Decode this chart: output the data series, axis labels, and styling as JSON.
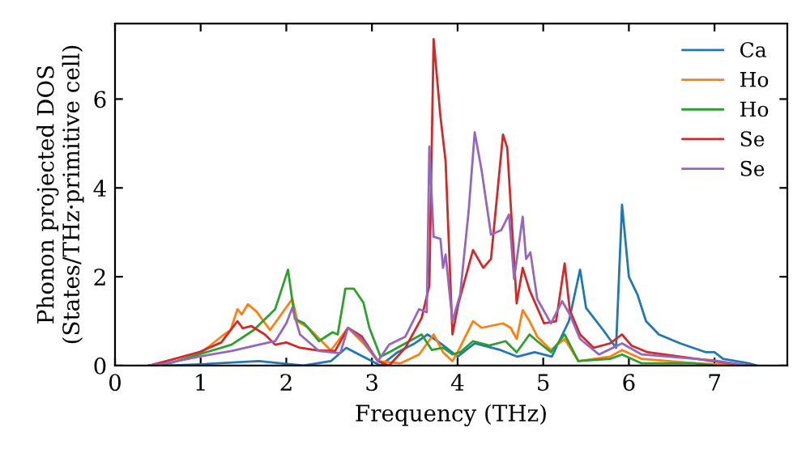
{
  "chart_data": {
    "type": "line",
    "xlabel": "Frequency (THz)",
    "ylabel": "Phonon projected DOS\n(States/THz·primitive cell)",
    "xlim": [
      0,
      7.85
    ],
    "ylim": [
      0,
      7.7
    ],
    "xticks": [
      0,
      1,
      2,
      3,
      4,
      5,
      6,
      7
    ],
    "yticks": [
      0,
      2,
      4,
      6
    ],
    "grid": false,
    "legend": "top right",
    "marker": "none",
    "line_style": "solid",
    "series": [
      {
        "name": "Ca",
        "color": "#1f77b4",
        "x": [
          0.4,
          0.6,
          1.0,
          1.68,
          2.2,
          2.52,
          2.7,
          2.9,
          3.1,
          3.3,
          3.5,
          3.65,
          3.8,
          4.0,
          4.2,
          4.5,
          4.7,
          4.9,
          5.1,
          5.3,
          5.43,
          5.5,
          5.7,
          5.85,
          5.92,
          6.0,
          6.1,
          6.2,
          6.35,
          6.6,
          6.9,
          7.0,
          7.1,
          7.4,
          7.5
        ],
        "values": [
          0,
          0,
          0.03,
          0.1,
          0,
          0.1,
          0.4,
          0.2,
          0,
          0.3,
          0.5,
          0.7,
          0.5,
          0.2,
          0.5,
          0.35,
          0.2,
          0.3,
          0.2,
          1.0,
          2.16,
          1.3,
          0.8,
          0.4,
          3.62,
          2.0,
          1.6,
          1.0,
          0.7,
          0.5,
          0.3,
          0.3,
          0.15,
          0.05,
          0
        ]
      },
      {
        "name": "Ho",
        "color": "#ff7f0e",
        "x": [
          0.4,
          0.6,
          0.98,
          1.24,
          1.35,
          1.43,
          1.48,
          1.55,
          1.65,
          1.81,
          1.94,
          2.07,
          2.13,
          2.26,
          2.52,
          2.72,
          2.9,
          3.07,
          3.33,
          3.55,
          3.72,
          3.83,
          3.94,
          4.0,
          4.18,
          4.28,
          4.53,
          4.62,
          4.69,
          4.76,
          4.84,
          4.93,
          5.09,
          5.25,
          5.41,
          5.78,
          5.92,
          6.15,
          6.78,
          7.4
        ],
        "values": [
          0,
          0.03,
          0.25,
          0.65,
          0.8,
          1.27,
          1.15,
          1.38,
          1.22,
          0.8,
          1.15,
          1.5,
          1.0,
          0.85,
          0.34,
          0.85,
          0.5,
          0.1,
          0.05,
          0.25,
          0.7,
          0.3,
          0.1,
          0.3,
          1.0,
          0.85,
          0.95,
          0.85,
          0.6,
          1.25,
          1.0,
          0.65,
          0.35,
          0.6,
          0.1,
          0.2,
          0.35,
          0.15,
          0.05,
          0
        ]
      },
      {
        "name": "Ho",
        "color": "#2ca02c",
        "x": [
          0.4,
          0.6,
          0.98,
          1.36,
          1.62,
          1.87,
          2.02,
          2.1,
          2.21,
          2.38,
          2.54,
          2.6,
          2.69,
          2.79,
          2.9,
          2.97,
          3.1,
          3.2,
          3.39,
          3.58,
          3.7,
          3.83,
          3.94,
          4.03,
          4.18,
          4.37,
          4.56,
          4.69,
          4.84,
          4.93,
          5.09,
          5.25,
          5.41,
          5.78,
          5.92,
          6.15,
          6.78,
          7.0
        ],
        "values": [
          0,
          0.03,
          0.25,
          0.47,
          0.8,
          1.27,
          2.16,
          1.05,
          0.95,
          0.55,
          0.75,
          0.7,
          1.73,
          1.73,
          1.42,
          0.85,
          0.2,
          0.3,
          0.5,
          0.7,
          0.35,
          0.4,
          0.25,
          0.3,
          0.55,
          0.45,
          0.55,
          0.3,
          0.7,
          0.55,
          0.3,
          0.7,
          0.1,
          0.15,
          0.25,
          0.05,
          0.05,
          0
        ]
      },
      {
        "name": "Se",
        "color": "#d62728",
        "x": [
          0.4,
          0.6,
          0.98,
          1.24,
          1.43,
          1.49,
          1.59,
          1.75,
          1.87,
          2.0,
          2.16,
          2.38,
          2.57,
          2.72,
          2.88,
          3.07,
          3.2,
          3.39,
          3.58,
          3.67,
          3.72,
          3.8,
          3.86,
          3.94,
          4.01,
          4.18,
          4.3,
          4.39,
          4.53,
          4.58,
          4.69,
          4.76,
          4.84,
          5.01,
          5.15,
          5.25,
          5.31,
          5.43,
          5.59,
          5.78,
          5.92,
          6.03,
          6.22,
          6.98,
          7.4
        ],
        "values": [
          0,
          0.1,
          0.3,
          0.52,
          1.0,
          0.84,
          0.89,
          0.7,
          0.47,
          0.52,
          0.4,
          0.34,
          0.33,
          0.85,
          0.66,
          0.1,
          0,
          0.4,
          1.07,
          1.8,
          7.35,
          5.6,
          4.6,
          0.7,
          1.4,
          2.6,
          2.2,
          2.4,
          5.2,
          4.9,
          1.4,
          2.2,
          1.7,
          0.95,
          1.0,
          2.3,
          1.25,
          0.7,
          0.4,
          0.5,
          0.7,
          0.45,
          0.3,
          0.1,
          0
        ]
      },
      {
        "name": "Se",
        "color": "#9467bd",
        "x": [
          0.4,
          0.6,
          0.98,
          1.36,
          1.68,
          1.87,
          2.0,
          2.07,
          2.16,
          2.38,
          2.63,
          2.72,
          2.88,
          3.07,
          3.2,
          3.39,
          3.55,
          3.64,
          3.67,
          3.72,
          3.8,
          3.83,
          3.86,
          3.94,
          4.03,
          4.13,
          4.2,
          4.28,
          4.39,
          4.51,
          4.6,
          4.66,
          4.76,
          4.8,
          4.85,
          4.93,
          5.09,
          5.22,
          5.31,
          5.43,
          5.65,
          5.92,
          6.15,
          6.98,
          7.4
        ],
        "values": [
          0,
          0.05,
          0.2,
          0.33,
          0.47,
          0.55,
          0.95,
          1.3,
          0.7,
          0.33,
          0.28,
          0.85,
          0.6,
          0.1,
          0.47,
          0.65,
          1.27,
          1.2,
          4.93,
          2.9,
          2.85,
          2.2,
          2.5,
          1.0,
          1.6,
          3.5,
          5.25,
          4.4,
          2.95,
          3.05,
          3.4,
          1.95,
          3.35,
          2.4,
          2.55,
          1.5,
          0.95,
          1.45,
          1.15,
          0.6,
          0.25,
          0.5,
          0.25,
          0.12,
          0
        ]
      }
    ]
  }
}
